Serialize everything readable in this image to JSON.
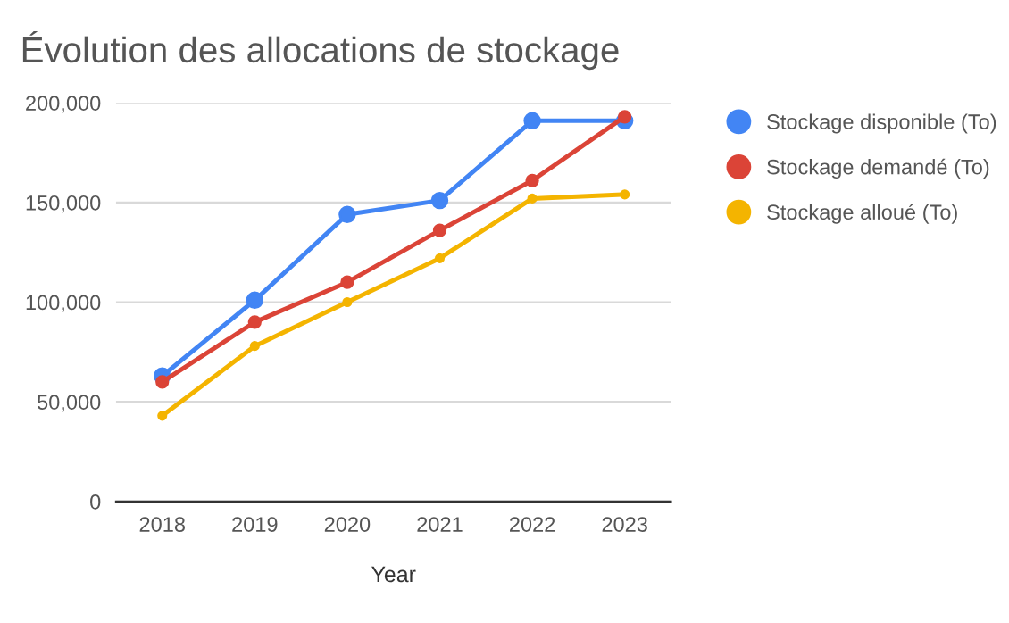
{
  "chart_data": {
    "type": "line",
    "title": "Évolution des allocations de stockage",
    "xlabel": "Year",
    "categories": [
      "2018",
      "2019",
      "2020",
      "2021",
      "2022",
      "2023"
    ],
    "series": [
      {
        "name": "Stockage disponible (To)",
        "color": "#4285f4",
        "values": [
          63000,
          101000,
          144000,
          151000,
          191000,
          191000
        ]
      },
      {
        "name": "Stockage demandé (To)",
        "color": "#db4437",
        "values": [
          60000,
          90000,
          110000,
          136000,
          161000,
          193000
        ]
      },
      {
        "name": "Stockage alloué (To)",
        "color": "#f4b400",
        "values": [
          43000,
          78000,
          100000,
          122000,
          152000,
          154000
        ]
      }
    ],
    "ylim": [
      0,
      200000
    ],
    "yticks": [
      {
        "value": 0,
        "label": "0"
      },
      {
        "value": 50000,
        "label": "50,000"
      },
      {
        "value": 100000,
        "label": "100,000"
      },
      {
        "value": 150000,
        "label": "150,000"
      },
      {
        "value": 200000,
        "label": "200,000"
      }
    ],
    "grid": "y",
    "legend": "right",
    "marker": "circle",
    "line_style": "solid"
  }
}
